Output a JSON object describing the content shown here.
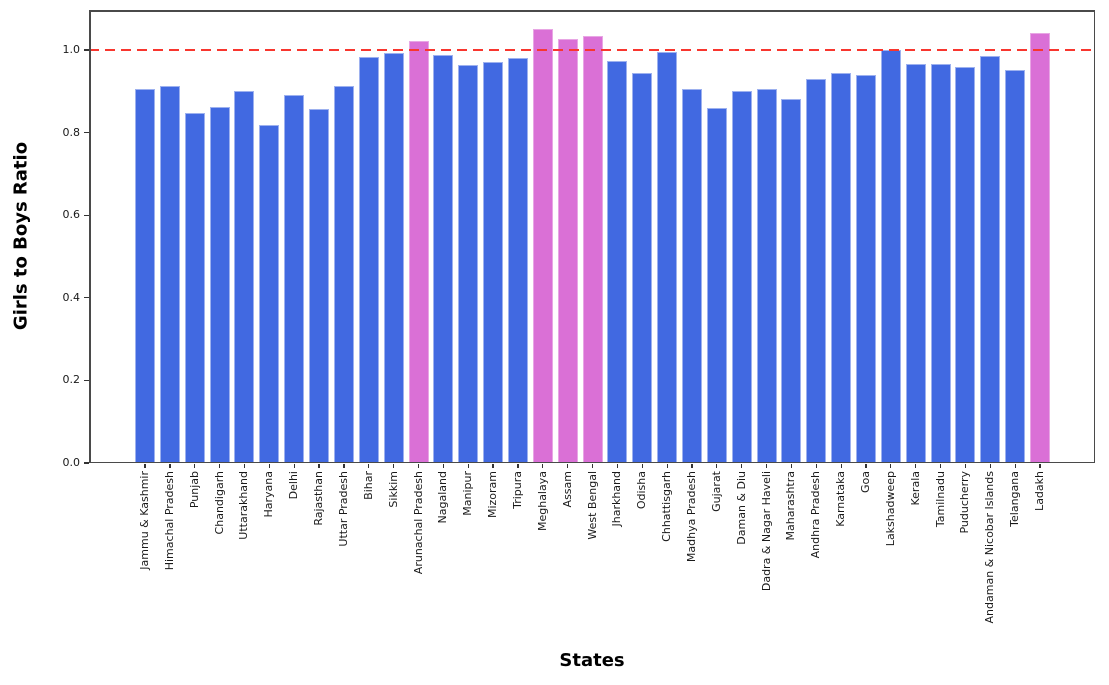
{
  "chart_data": {
    "type": "bar",
    "title": "",
    "xlabel": "States",
    "ylabel": "Girls to Boys Ratio",
    "categories": [
      "Jammu & Kashmir",
      "Himachal Pradesh",
      "Punjab",
      "Chandigarh",
      "Uttarakhand",
      "Haryana",
      "Delhi",
      "Rajasthan",
      "Uttar Pradesh",
      "Bihar",
      "Sikkim",
      "Arunachal Pradesh",
      "Nagaland",
      "Manipur",
      "Mizoram",
      "Tripura",
      "Meghalaya",
      "Assam",
      "West Bengal",
      "Jharkhand",
      "Odisha",
      "Chhattisgarh",
      "Madhya Pradesh",
      "Gujarat",
      "Daman & Diu",
      "Dadra & Nagar Haveli",
      "Maharashtra",
      "Andhra Pradesh",
      "Karnataka",
      "Goa",
      "Lakshadweep",
      "Kerala",
      "Tamilnadu",
      "Puducherry",
      "Andaman & Nicobar Islands",
      "Telangana",
      "Ladakh"
    ],
    "values": [
      0.906,
      0.913,
      0.847,
      0.862,
      0.9,
      0.819,
      0.891,
      0.858,
      0.912,
      0.984,
      0.993,
      1.021,
      0.989,
      0.964,
      0.97,
      0.981,
      1.051,
      1.026,
      1.034,
      0.974,
      0.945,
      0.994,
      0.906,
      0.859,
      0.901,
      0.906,
      0.881,
      0.929,
      0.944,
      0.94,
      1.0,
      0.966,
      0.966,
      0.96,
      0.986,
      0.951,
      1.042
    ],
    "highlighted_states": [
      "Arunachal Pradesh",
      "Meghalaya",
      "Assam",
      "West Bengal",
      "Ladakh"
    ],
    "bar_color": "#4169E1",
    "highlight_color": "#DA70D6",
    "bar_edge_color_blue": "#9db1ef",
    "bar_edge_color_pink": "#e8a6e4",
    "reference_line": {
      "y": 1.0,
      "color": "#f8362e",
      "style": "dashed"
    },
    "y_ticks": [
      0.0,
      0.2,
      0.4,
      0.6,
      0.8,
      1.0
    ],
    "y_tick_labels": [
      "0.0",
      "0.2",
      "0.4",
      "0.6",
      "0.8",
      "1.0"
    ],
    "ylim": [
      0,
      1.097
    ],
    "grid": false,
    "legend": null
  }
}
